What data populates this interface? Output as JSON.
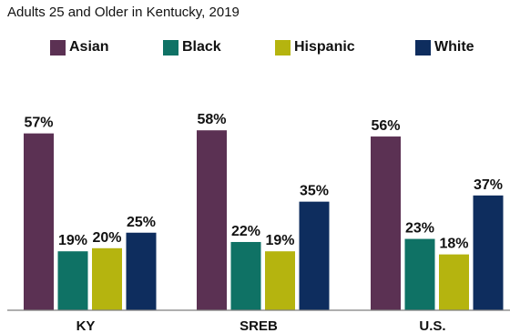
{
  "header": {
    "cut_title": "",
    "subtitle": "Adults 25 and Older in Kentucky, 2019"
  },
  "chart_data": {
    "type": "bar",
    "title": "",
    "subtitle": "Adults 25 and Older in Kentucky, 2019",
    "categories": [
      "KY",
      "SREB",
      "U.S."
    ],
    "series": [
      {
        "name": "Asian",
        "color": "#5b3153",
        "values": [
          57,
          58,
          56
        ],
        "labels": [
          "57%",
          "58%",
          "56%"
        ]
      },
      {
        "name": "Black",
        "color": "#0f7265",
        "values": [
          19,
          22,
          23
        ],
        "labels": [
          "19%",
          "22%",
          "23%"
        ]
      },
      {
        "name": "Hispanic",
        "color": "#b5b40f",
        "values": [
          20,
          19,
          18
        ],
        "labels": [
          "20%",
          "19%",
          "18%"
        ]
      },
      {
        "name": "White",
        "color": "#0e2d5e",
        "values": [
          25,
          35,
          37
        ],
        "labels": [
          "25%",
          "35%",
          "37%"
        ]
      }
    ],
    "legend": "top",
    "ylim": [
      0,
      60
    ],
    "grid": false,
    "xlabel": "",
    "ylabel": ""
  }
}
